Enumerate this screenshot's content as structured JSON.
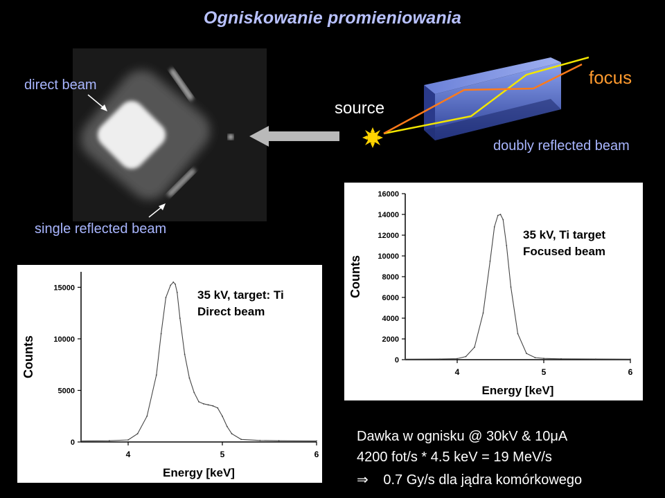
{
  "title": "Ogniskowanie promieniowania",
  "labels": {
    "direct_beam": "direct beam",
    "single_reflected_beam": "single reflected beam",
    "source": "source",
    "focus": "focus",
    "doubly_reflected_beam": "doubly reflected beam"
  },
  "dose": {
    "line1": "Dawka w ognisku @ 30kV & 10μA",
    "line2": "4200 fot/s * 4.5 keV = 19 MeV/s",
    "arrow": "⇒",
    "line3": "0.7 Gy/s  dla jądra komórkowego"
  },
  "colors": {
    "title": "#b9c2ff",
    "labels": "#a9b6ff",
    "source_text": "#ffffff",
    "focus_text": "#ff9a2e",
    "sun": "#ffd400",
    "optic": "#4a66c8",
    "ray_yellow": "#f2e600",
    "ray_orange": "#ff7a1a"
  },
  "chart_data": [
    {
      "type": "line",
      "annotation": [
        "35 kV, target: Ti",
        "Direct beam"
      ],
      "xlabel": "Energy [keV]",
      "ylabel": "Counts",
      "xlim": [
        3.5,
        6.0
      ],
      "ylim": [
        0,
        16500
      ],
      "xticks": [
        "4",
        "5",
        "6"
      ],
      "yticks": [
        "0",
        "5000",
        "10000",
        "15000"
      ],
      "x": [
        3.5,
        3.8,
        4.0,
        4.1,
        4.2,
        4.3,
        4.35,
        4.4,
        4.45,
        4.48,
        4.5,
        4.52,
        4.55,
        4.6,
        4.65,
        4.7,
        4.75,
        4.8,
        4.85,
        4.9,
        4.95,
        5.0,
        5.05,
        5.1,
        5.2,
        5.4,
        5.6,
        6.0
      ],
      "y": [
        100,
        120,
        200,
        800,
        2500,
        6500,
        10500,
        14000,
        15200,
        15500,
        15300,
        14500,
        12000,
        8500,
        6200,
        4800,
        3900,
        3700,
        3600,
        3500,
        3300,
        2500,
        1500,
        800,
        250,
        150,
        120,
        100
      ]
    },
    {
      "type": "line",
      "annotation": [
        "35 kV, Ti target",
        "Focused beam"
      ],
      "xlabel": "Energy [keV]",
      "ylabel": "Counts",
      "xlim": [
        3.4,
        6.0
      ],
      "ylim": [
        0,
        16000
      ],
      "xticks": [
        "4",
        "5",
        "6"
      ],
      "yticks": [
        "0",
        "2000",
        "4000",
        "6000",
        "8000",
        "10000",
        "12000",
        "14000",
        "16000"
      ],
      "x": [
        3.4,
        3.8,
        4.0,
        4.1,
        4.2,
        4.3,
        4.38,
        4.43,
        4.47,
        4.5,
        4.53,
        4.57,
        4.62,
        4.7,
        4.8,
        4.9,
        5.0,
        5.2,
        5.6,
        6.0
      ],
      "y": [
        50,
        60,
        100,
        300,
        1200,
        4500,
        9500,
        12800,
        13900,
        14000,
        13500,
        11000,
        7000,
        2500,
        600,
        200,
        120,
        80,
        60,
        50
      ]
    }
  ]
}
